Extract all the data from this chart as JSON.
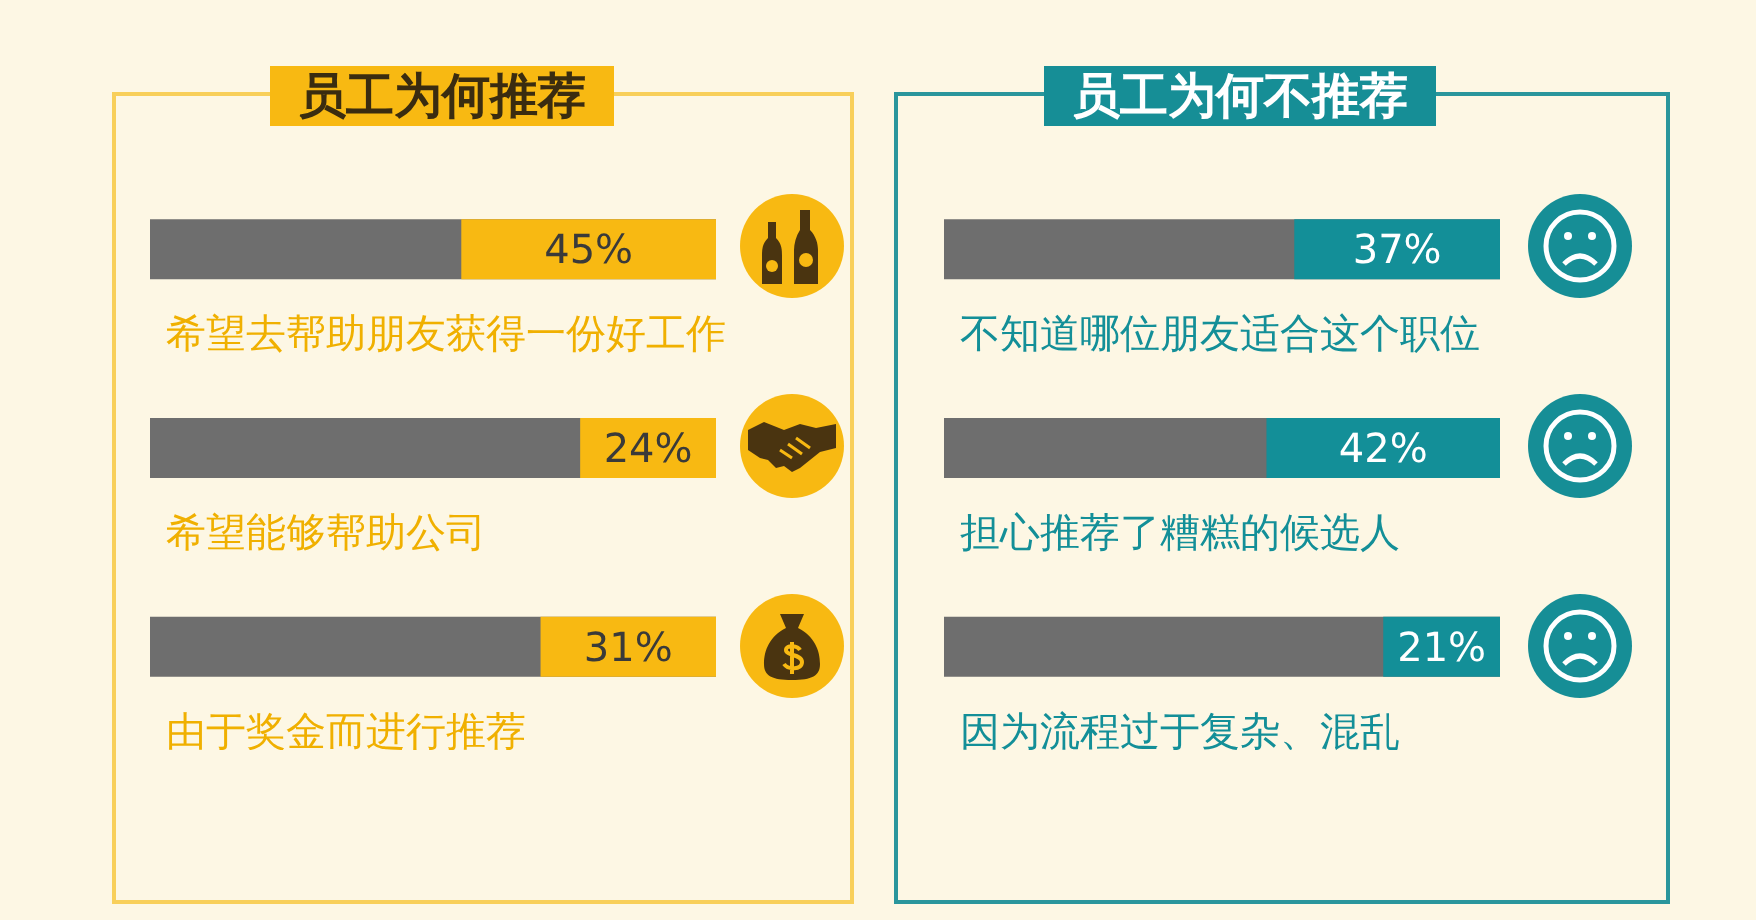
{
  "chart_data": [
    {
      "type": "bar",
      "orientation": "horizontal",
      "title": "员工为何推荐",
      "categories": [
        "希望去帮助朋友获得一份好工作",
        "希望能够帮助公司",
        "由于奖金而进行推荐"
      ],
      "series": [
        {
          "color": "#f8b912",
          "values": [
            45,
            24,
            31
          ],
          "value_labels": [
            "45%",
            "24%",
            "31%"
          ]
        }
      ],
      "xlim": [
        100,
        0
      ],
      "tick_labels": false
    },
    {
      "type": "bar",
      "orientation": "horizontal",
      "title": "员工为何不推荐",
      "categories": [
        "不知道哪位朋友适合这个职位",
        "担心推荐了糟糕的候选人",
        "因为流程过于复杂、混乱"
      ],
      "series": [
        {
          "color": "#138f98",
          "values": [
            37,
            42,
            21
          ],
          "value_labels": [
            "37%",
            "42%",
            "21%"
          ]
        }
      ],
      "xlim": [
        100,
        0
      ],
      "tick_labels": false
    }
  ]
}
